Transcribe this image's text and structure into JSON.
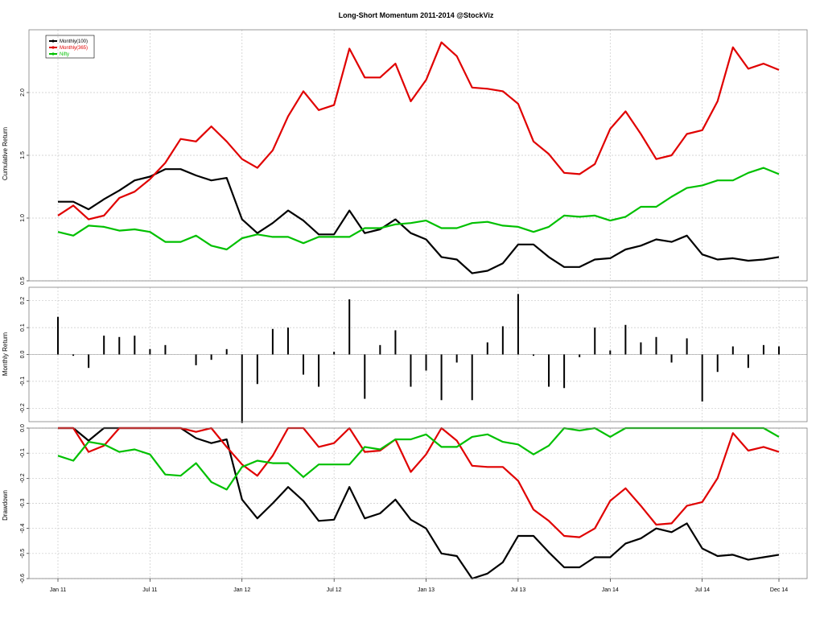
{
  "chart_data": [
    {
      "type": "line",
      "title": "Long-Short Momentum 2011-2014 @StockViz",
      "ylabel": "Cumulative Return",
      "ylim": [
        0.5,
        2.5
      ],
      "yticks": [
        "0.5",
        "1.0",
        "1.5",
        "2.0"
      ],
      "xticks": [
        "Jan 11",
        "Jul 11",
        "Jan 12",
        "Jul 12",
        "Jan 13",
        "Jul 13",
        "Jan 14",
        "Jul 14",
        "Dec 14"
      ],
      "grid": true,
      "legend_position": "top-left",
      "series": [
        {
          "name": "Monthly(100)",
          "color": "#000000",
          "values": [
            1.13,
            1.13,
            1.07,
            1.15,
            1.22,
            1.3,
            1.33,
            1.39,
            1.39,
            1.34,
            1.3,
            1.32,
            0.99,
            0.88,
            0.96,
            1.06,
            0.98,
            0.87,
            0.87,
            1.06,
            0.88,
            0.91,
            0.99,
            0.88,
            0.83,
            0.69,
            0.67,
            0.56,
            0.58,
            0.64,
            0.79,
            0.79,
            0.69,
            0.61,
            0.61,
            0.67,
            0.68,
            0.75,
            0.78,
            0.83,
            0.81,
            0.86,
            0.71,
            0.67,
            0.68,
            0.66,
            0.67,
            0.69
          ]
        },
        {
          "name": "Monthly(365)",
          "color": "#e00000",
          "values": [
            1.02,
            1.1,
            0.99,
            1.02,
            1.16,
            1.21,
            1.31,
            1.44,
            1.63,
            1.61,
            1.73,
            1.61,
            1.47,
            1.4,
            1.54,
            1.81,
            2.01,
            1.86,
            1.9,
            2.35,
            2.12,
            2.12,
            2.23,
            1.93,
            2.1,
            2.4,
            2.29,
            2.04,
            2.03,
            2.01,
            1.91,
            1.61,
            1.51,
            1.36,
            1.35,
            1.43,
            1.71,
            1.85,
            1.67,
            1.47,
            1.5,
            1.67,
            1.7,
            1.93,
            2.36,
            2.19,
            2.23,
            2.18
          ]
        },
        {
          "name": "Nifty",
          "color": "#00c000",
          "values": [
            0.89,
            0.86,
            0.94,
            0.93,
            0.9,
            0.91,
            0.89,
            0.81,
            0.81,
            0.86,
            0.78,
            0.75,
            0.84,
            0.87,
            0.85,
            0.85,
            0.8,
            0.85,
            0.85,
            0.85,
            0.92,
            0.92,
            0.95,
            0.96,
            0.98,
            0.92,
            0.92,
            0.96,
            0.97,
            0.94,
            0.93,
            0.89,
            0.93,
            1.02,
            1.01,
            1.02,
            0.98,
            1.01,
            1.09,
            1.09,
            1.17,
            1.24,
            1.26,
            1.3,
            1.3,
            1.36,
            1.4,
            1.35
          ]
        }
      ]
    },
    {
      "type": "bar",
      "ylabel": "Monthly Return",
      "ylim": [
        -0.25,
        0.25
      ],
      "yticks": [
        "-0.2",
        "-0.1",
        "0.0",
        "0.1",
        "0.2"
      ],
      "grid": true,
      "series": [
        {
          "name": "",
          "color": "#000000",
          "values": [
            0.14,
            -0.005,
            -0.05,
            0.07,
            0.065,
            0.07,
            0.02,
            0.035,
            0,
            -0.04,
            -0.02,
            0.02,
            -0.255,
            -0.11,
            0.095,
            0.1,
            -0.075,
            -0.12,
            0.01,
            0.205,
            -0.165,
            0.035,
            0.09,
            -0.12,
            -0.06,
            -0.17,
            -0.03,
            -0.17,
            0.045,
            0.105,
            0.225,
            -0.005,
            -0.12,
            -0.125,
            -0.01,
            0.1,
            0.015,
            0.11,
            0.045,
            0.065,
            -0.03,
            0.06,
            -0.175,
            -0.065,
            0.03,
            -0.05,
            0.035,
            0.03
          ]
        }
      ]
    },
    {
      "type": "line",
      "ylabel": "Drawdown",
      "ylim": [
        -0.6,
        0.0
      ],
      "yticks": [
        "-0.6",
        "-0.5",
        "-0.4",
        "-0.3",
        "-0.2",
        "-0.1",
        "0.0"
      ],
      "grid": true,
      "series": [
        {
          "name": "Monthly(100)",
          "color": "#000000",
          "values": [
            0,
            0,
            -0.05,
            0,
            0,
            0,
            0,
            0,
            0,
            -0.04,
            -0.06,
            -0.045,
            -0.285,
            -0.36,
            -0.3,
            -0.235,
            -0.29,
            -0.37,
            -0.365,
            -0.235,
            -0.36,
            -0.34,
            -0.285,
            -0.365,
            -0.4,
            -0.5,
            -0.51,
            -0.6,
            -0.58,
            -0.535,
            -0.43,
            -0.43,
            -0.495,
            -0.555,
            -0.555,
            -0.515,
            -0.515,
            -0.46,
            -0.44,
            -0.4,
            -0.415,
            -0.38,
            -0.48,
            -0.51,
            -0.505,
            -0.525,
            -0.515,
            -0.505
          ]
        },
        {
          "name": "Monthly(365)",
          "color": "#e00000",
          "values": [
            0,
            0,
            -0.095,
            -0.07,
            0,
            0,
            0,
            0,
            0,
            -0.015,
            0,
            -0.075,
            -0.145,
            -0.19,
            -0.11,
            0,
            0,
            -0.075,
            -0.06,
            0,
            -0.095,
            -0.09,
            -0.045,
            -0.175,
            -0.105,
            0,
            -0.05,
            -0.15,
            -0.155,
            -0.155,
            -0.21,
            -0.325,
            -0.37,
            -0.43,
            -0.435,
            -0.4,
            -0.29,
            -0.24,
            -0.31,
            -0.385,
            -0.38,
            -0.31,
            -0.295,
            -0.2,
            -0.02,
            -0.09,
            -0.075,
            -0.095
          ]
        },
        {
          "name": "Nifty",
          "color": "#00c000",
          "values": [
            -0.11,
            -0.13,
            -0.055,
            -0.065,
            -0.095,
            -0.085,
            -0.105,
            -0.185,
            -0.19,
            -0.14,
            -0.215,
            -0.245,
            -0.155,
            -0.13,
            -0.14,
            -0.14,
            -0.195,
            -0.145,
            -0.145,
            -0.145,
            -0.075,
            -0.085,
            -0.045,
            -0.045,
            -0.025,
            -0.075,
            -0.075,
            -0.035,
            -0.025,
            -0.055,
            -0.065,
            -0.105,
            -0.07,
            0,
            -0.01,
            0,
            -0.035,
            0,
            0,
            0,
            0,
            0,
            0,
            0,
            0,
            0,
            0,
            -0.035
          ]
        }
      ]
    }
  ]
}
